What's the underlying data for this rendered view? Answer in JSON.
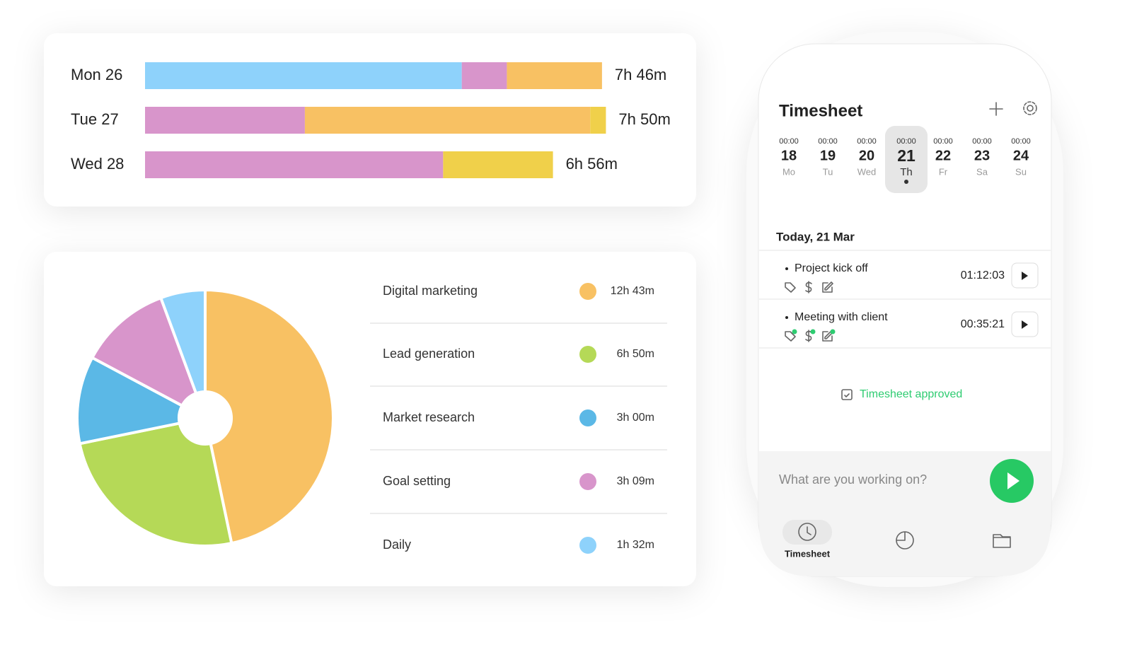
{
  "chart_data": [
    {
      "type": "stacked-bar-h",
      "categories": [
        "Mon 26",
        "Tue 27",
        "Wed 28"
      ],
      "series": [
        {
          "color": "#8ed2fb",
          "values": [
            323,
            null,
            null
          ]
        },
        {
          "color": "#d895cb",
          "values": [
            46,
            163,
            304
          ]
        },
        {
          "color": "#f8c163",
          "values": [
            97,
            291,
            null
          ]
        },
        {
          "color": "#f0d04a",
          "values": [
            null,
            16,
            112
          ]
        }
      ],
      "totals": [
        "7h 46m",
        "7h 50m",
        "6h 56m"
      ]
    },
    {
      "type": "pie",
      "categories": [
        "Digital marketing",
        "Lead generation",
        "Market research",
        "Goal setting",
        "Daily"
      ],
      "values": [
        763,
        410,
        180,
        189,
        92
      ],
      "value_labels": [
        "12h 43m",
        "6h 50m",
        "3h 00m",
        "3h 09m",
        "1h 32m"
      ],
      "colors": [
        "#f8c163",
        "#b5d957",
        "#5bb8e6",
        "#d895cb",
        "#8ed2fb"
      ]
    }
  ],
  "phone": {
    "title": "Timesheet",
    "days": [
      {
        "time": "00:00",
        "day": "18",
        "weekday": "Mo"
      },
      {
        "time": "00:00",
        "day": "19",
        "weekday": "Tu"
      },
      {
        "time": "00:00",
        "day": "20",
        "weekday": "Wed"
      },
      {
        "time": "00:00",
        "day": "21",
        "weekday": "Th",
        "selected": true
      },
      {
        "time": "00:00",
        "day": "22",
        "weekday": "Fr"
      },
      {
        "time": "00:00",
        "day": "23",
        "weekday": "Sa"
      },
      {
        "time": "00:00",
        "day": "24",
        "weekday": "Su"
      }
    ],
    "date_heading": "Today, 21 Mar",
    "entries": [
      {
        "name": "Project kick off",
        "duration": "01:12:03"
      },
      {
        "name": "Meeting with client",
        "duration": "00:35:21"
      }
    ],
    "status": "Timesheet approved",
    "input_placeholder": "What are you working on?",
    "nav_label": "Timesheet"
  }
}
